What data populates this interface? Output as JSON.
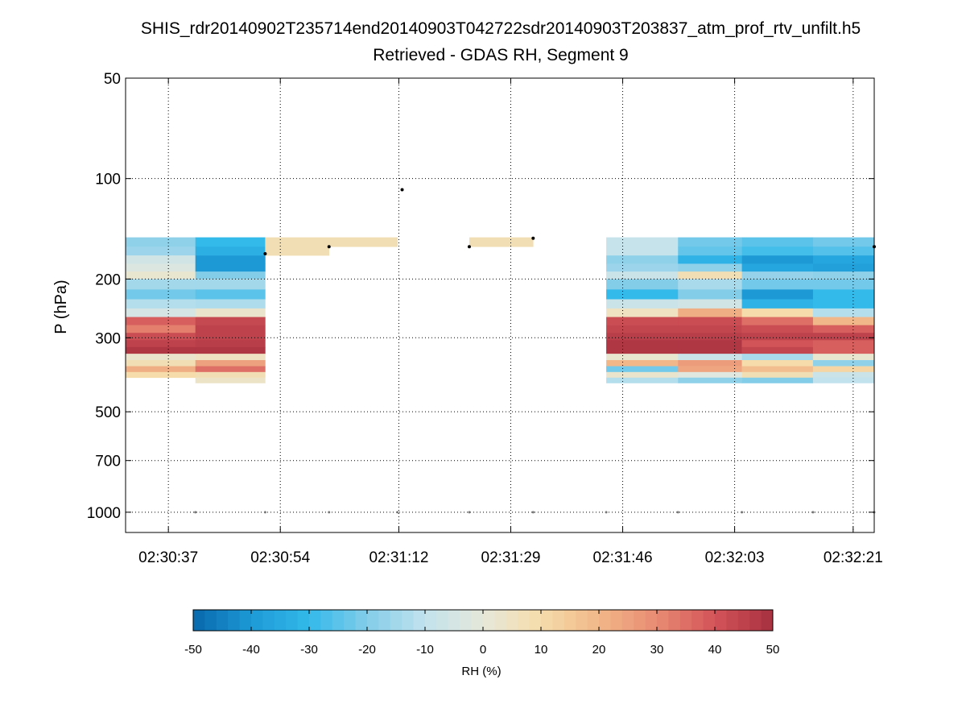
{
  "chart_data": {
    "type": "heatmap",
    "title": "SHIS_rdr20140902T235714end20140903T042722sdr20140903T203837_atm_prof_rtv_unfilt.h5",
    "subtitle": "Retrieved - GDAS RH, Segment 9",
    "ylabel": "P (hPa)",
    "xlabel": "",
    "y_scale": "log",
    "y_direction": "reversed",
    "ylim": [
      50,
      1150
    ],
    "y_ticks": [
      "50",
      "100",
      "200",
      "300",
      "500",
      "700",
      "1000"
    ],
    "y_tick_values": [
      50,
      100,
      200,
      300,
      500,
      700,
      1000
    ],
    "x_ticks": [
      "02:30:37",
      "02:30:54",
      "02:31:12",
      "02:31:29",
      "02:31:46",
      "02:32:03",
      "02:32:21"
    ],
    "x_tick_seconds": [
      37,
      54,
      72,
      89,
      106,
      123,
      141
    ],
    "xlim_seconds": [
      30.5,
      144.2
    ],
    "grid": true,
    "colorbar": {
      "label": "RH (%)",
      "range": [
        -50,
        50
      ],
      "ticks": [
        "-50",
        "-40",
        "-30",
        "-20",
        "-10",
        "0",
        "10",
        "20",
        "30",
        "40",
        "50"
      ],
      "colormap": [
        "#0868ac",
        "#1d9ad6",
        "#33b9ea",
        "#83cde9",
        "#c2e2ed",
        "#e6e8da",
        "#f5dcaa",
        "#f2b788",
        "#e88a73",
        "#d35458",
        "#a6303f"
      ]
    },
    "pressure_levels": [
      150,
      160,
      170,
      180,
      190,
      200,
      215,
      230,
      245,
      260,
      275,
      290,
      305,
      320,
      335,
      350,
      365,
      380,
      395,
      410
    ],
    "columns": [
      {
        "t_start": 30.5,
        "t_end": 41.1,
        "cells": [
          -18,
          -16,
          -6,
          -3,
          2,
          -15,
          -22,
          -12,
          -5,
          38,
          32,
          42,
          45,
          48,
          3,
          8,
          22,
          10
        ]
      },
      {
        "t_start": 41.1,
        "t_end": 51.7,
        "cells": [
          -30,
          -33,
          -40,
          -40,
          -20,
          -15,
          -25,
          -13,
          3,
          43,
          45,
          45,
          46,
          48,
          5,
          25,
          35,
          8,
          4
        ]
      },
      {
        "t_start": 51.7,
        "t_end": 61.4,
        "cells": [
          8,
          8
        ]
      },
      {
        "t_start": 61.4,
        "t_end": 71.8,
        "cells": [
          8
        ]
      },
      {
        "t_start": 82.7,
        "t_end": 92.4,
        "cells": [
          8
        ]
      },
      {
        "t_start": 103.5,
        "t_end": 114.4,
        "cells": [
          -9,
          -9,
          -18,
          -16,
          -8,
          -20,
          -30,
          -8,
          5,
          42,
          44,
          46,
          48,
          48,
          2,
          20,
          -22,
          3,
          -12,
          -25
        ]
      },
      {
        "t_start": 114.4,
        "t_end": 124.1,
        "cells": [
          -22,
          -24,
          -32,
          -18,
          8,
          -14,
          -20,
          -6,
          22,
          42,
          44,
          46,
          48,
          48,
          -8,
          26,
          24,
          -2,
          -18,
          -20
        ]
      },
      {
        "t_start": 124.1,
        "t_end": 134.9,
        "cells": [
          -25,
          -28,
          -40,
          -36,
          -17,
          -22,
          -40,
          -32,
          10,
          35,
          42,
          45,
          40,
          44,
          -14,
          10,
          18,
          8,
          -20,
          -25
        ]
      },
      {
        "t_start": 134.9,
        "t_end": 144.2,
        "cells": [
          -22,
          -26,
          -36,
          -38,
          -18,
          -22,
          -30,
          -30,
          -12,
          20,
          38,
          45,
          38,
          38,
          2,
          -18,
          12,
          -8,
          -10
        ]
      }
    ],
    "surface_markers": {
      "t": [
        41.1,
        51.7,
        61.4,
        71.8,
        82.7,
        92.4,
        103.5,
        114.4,
        124.1,
        134.9,
        144.2
      ],
      "p": 1000
    },
    "top_markers": {
      "t": [
        51.7,
        61.4,
        72.5,
        82.7,
        92.4,
        144.2
      ],
      "p": [
        168,
        160,
        108,
        160,
        151,
        160
      ]
    }
  }
}
